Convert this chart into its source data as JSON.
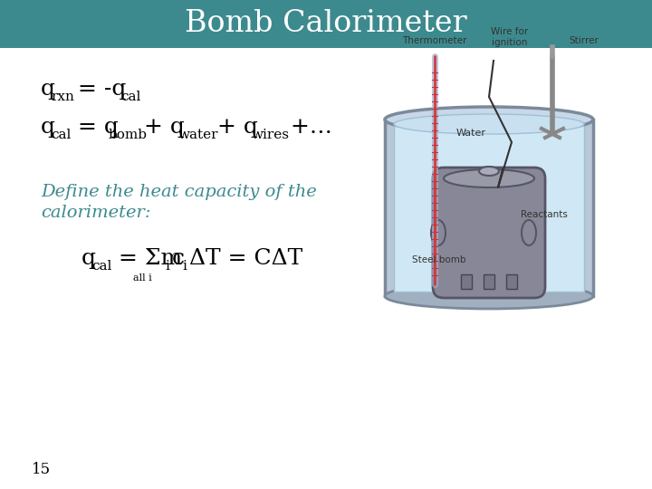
{
  "title": "Bomb Calorimeter",
  "title_bg_color": "#3d8a8e",
  "title_text_color": "#ffffff",
  "slide_bg_color": "#ffffff",
  "define_text_line1": "Define the heat capacity of the",
  "define_text_line2": "calorimeter:",
  "define_color": "#3d8a8e",
  "page_number": "15",
  "text_color": "#000000",
  "diagram_labels": {
    "thermometer": "Thermometer",
    "wire": "Wire for\nignition",
    "stirrer": "Stirrer",
    "water": "Water",
    "reactants": "Reactants",
    "steel_bomb": "Steel bomb"
  }
}
